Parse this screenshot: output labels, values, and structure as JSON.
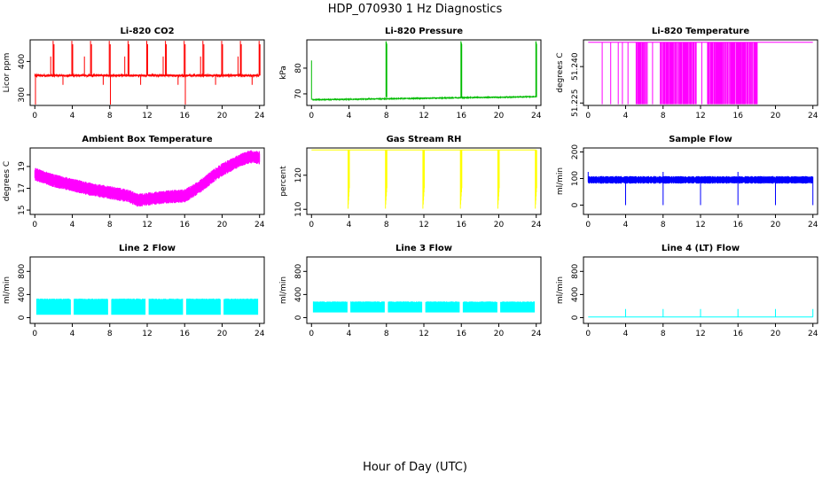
{
  "figure": {
    "title": "HDP_070930  1 Hz Diagnostics",
    "xlabel": "Hour of Day (UTC)"
  },
  "chart_data": [
    {
      "type": "line",
      "title": "Li-820 CO2",
      "ylabel": "Licor ppm",
      "color": "#ff0000",
      "xlim": [
        -0.5,
        24.5
      ],
      "ylim": [
        268,
        465
      ],
      "xticks": [
        0,
        4,
        8,
        12,
        16,
        20,
        24
      ],
      "yticks": [
        300,
        400
      ],
      "pattern": "spiky",
      "baseline": 358,
      "noise": 6,
      "low_floor": 268,
      "spike_up": [
        2,
        4,
        6,
        8,
        10,
        12,
        14,
        16,
        18,
        20,
        22,
        24
      ],
      "spike_up_top": 462,
      "spike_down": [
        0,
        8,
        16
      ],
      "minor_up": [
        1.7,
        5.3,
        9.6,
        13.7,
        17.7,
        21.7
      ],
      "minor_up_top": 415,
      "minor_down": [
        3,
        7.3,
        11.3,
        15.3,
        19.3,
        23.2
      ],
      "minor_down_bottom": 330
    },
    {
      "type": "line",
      "title": "Li-820 Pressure",
      "ylabel": "kPa",
      "color": "#00bb00",
      "xlim": [
        -0.5,
        24.5
      ],
      "ylim": [
        65.5,
        91
      ],
      "xticks": [
        0,
        4,
        8,
        12,
        16,
        20,
        24
      ],
      "yticks": [
        70,
        80
      ],
      "pattern": "pressure",
      "start": 67.7,
      "end": 68.9,
      "noise": 0.2,
      "initial_spike_top": 83,
      "spikes": [
        8,
        16,
        24
      ],
      "spike_top": 90.5
    },
    {
      "type": "line",
      "title": "Li-820 Temperature",
      "ylabel": "degrees C",
      "color": "#ff00ff",
      "xlim": [
        -0.5,
        24.5
      ],
      "ylim": [
        51.224,
        51.251
      ],
      "xticks": [
        0,
        4,
        8,
        12,
        16,
        20,
        24
      ],
      "yticks": [
        51.225,
        51.24
      ],
      "ytick_labels": [
        "51.225",
        "51.240"
      ],
      "pattern": "dropouts",
      "baseline": 51.25,
      "drop_to": 51.2245,
      "drop_span": [
        1.5,
        18.3
      ]
    },
    {
      "type": "line",
      "title": "Ambient Box Temperature",
      "ylabel": "degrees C",
      "color": "#ff00ff",
      "xlim": [
        -0.5,
        24.5
      ],
      "ylim": [
        14.6,
        20.7
      ],
      "xticks": [
        0,
        4,
        8,
        12,
        16,
        20,
        24
      ],
      "yticks": [
        15,
        17,
        19
      ],
      "pattern": "temperature_band",
      "band": 0.55,
      "curve_x": [
        0,
        2,
        4,
        6,
        8,
        10,
        11,
        12,
        14,
        16,
        17,
        18,
        19,
        20,
        22,
        23,
        24
      ],
      "curve_y": [
        18.3,
        17.7,
        17.3,
        16.9,
        16.6,
        16.3,
        15.9,
        16.0,
        16.2,
        16.3,
        16.8,
        17.4,
        18.1,
        18.7,
        19.6,
        19.9,
        19.8
      ]
    },
    {
      "type": "line",
      "title": "Gas Stream RH",
      "ylabel": "percent",
      "color": "#ffff00",
      "xlim": [
        -0.5,
        24.5
      ],
      "ylim": [
        108.5,
        128
      ],
      "xticks": [
        0,
        4,
        8,
        12,
        16,
        20,
        24
      ],
      "yticks": [
        110,
        120
      ],
      "pattern": "rh",
      "baseline": 127.4,
      "drops": [
        4,
        8,
        12,
        16,
        20,
        24
      ],
      "drop_to": 110.2
    },
    {
      "type": "line",
      "title": "Sample Flow",
      "ylabel": "ml/min",
      "color": "#0000ff",
      "xlim": [
        -0.5,
        24.5
      ],
      "ylim": [
        -35,
        215
      ],
      "xticks": [
        0,
        4,
        8,
        12,
        16,
        20,
        24
      ],
      "yticks": [
        0,
        100,
        200
      ],
      "pattern": "band",
      "level": 95,
      "band": 14,
      "drops": [
        4,
        8,
        12,
        16,
        20,
        24
      ],
      "drop_to": 0,
      "peaks": [
        0,
        8,
        16
      ],
      "peak_top": 125
    },
    {
      "type": "line",
      "title": "Line 2 Flow",
      "ylabel": "ml/min",
      "color": "#00ffff",
      "xlim": [
        -0.5,
        24.5
      ],
      "ylim": [
        -100,
        1050
      ],
      "xticks": [
        0,
        4,
        8,
        12,
        16,
        20,
        24
      ],
      "yticks": [
        0,
        400,
        800
      ],
      "pattern": "segments",
      "segments": [
        [
          0.2,
          3.8
        ],
        [
          4.2,
          7.8
        ],
        [
          8.2,
          11.8
        ],
        [
          12.2,
          15.8
        ],
        [
          16.2,
          19.8
        ],
        [
          20.2,
          23.8
        ]
      ],
      "seg_low": 50,
      "seg_high": 330
    },
    {
      "type": "line",
      "title": "Line 3 Flow",
      "ylabel": "ml/min",
      "color": "#00ffff",
      "xlim": [
        -0.5,
        24.5
      ],
      "ylim": [
        -100,
        1050
      ],
      "xticks": [
        0,
        4,
        8,
        12,
        16,
        20,
        24
      ],
      "yticks": [
        0,
        400,
        800
      ],
      "pattern": "segments",
      "segments": [
        [
          0.2,
          3.8
        ],
        [
          4.2,
          7.8
        ],
        [
          8.2,
          11.8
        ],
        [
          12.2,
          15.8
        ],
        [
          16.2,
          19.8
        ],
        [
          20.2,
          23.8
        ]
      ],
      "seg_low": 90,
      "seg_high": 280
    },
    {
      "type": "line",
      "title": "Line 4 (LT) Flow",
      "ylabel": "ml/min",
      "color": "#00ffff",
      "xlim": [
        -0.5,
        24.5
      ],
      "ylim": [
        -100,
        1050
      ],
      "xticks": [
        0,
        4,
        8,
        12,
        16,
        20,
        24
      ],
      "yticks": [
        0,
        400,
        800
      ],
      "pattern": "flat_spikes",
      "baseline": 10,
      "spikes": [
        4,
        8,
        12,
        16,
        20,
        24
      ],
      "spike_top": 150
    }
  ]
}
